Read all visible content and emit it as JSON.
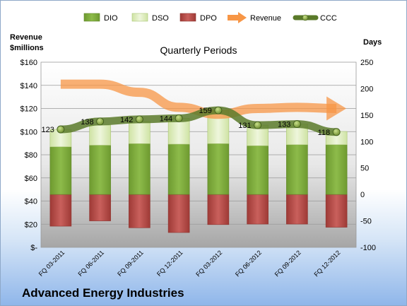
{
  "chart_data": {
    "type": "bar",
    "title": "Quarterly Periods",
    "company": "Advanced Energy Industries",
    "left_axis_label": [
      "Revenue",
      "$millions"
    ],
    "right_axis_label": "Days",
    "categories": [
      "FQ 03-2011",
      "FQ 06-2011",
      "FQ 09-2011",
      "FQ 12-2011",
      "FQ 03-2012",
      "FQ 06-2012",
      "FQ 09-2012",
      "FQ 12-2012"
    ],
    "legend": [
      "DIO",
      "DSO",
      "DPO",
      "Revenue",
      "CCC"
    ],
    "left_ticks": [
      "$160",
      "$140",
      "$120",
      "$100",
      "$80",
      "$60",
      "$40",
      "$20",
      "$-"
    ],
    "right_ticks": [
      "250",
      "200",
      "150",
      "100",
      "50",
      "0",
      "-50",
      "-100"
    ],
    "left_ylim": [
      0,
      160
    ],
    "right_ylim": [
      -100,
      250
    ],
    "series": [
      {
        "name": "DIO",
        "color": "#7fae3e",
        "values": [
          90,
          93,
          96,
          95,
          96,
          92,
          94,
          94
        ]
      },
      {
        "name": "DSO",
        "color": "#d9ebb4",
        "values": [
          33,
          38,
          42,
          49,
          63,
          39,
          39,
          25
        ]
      },
      {
        "name": "DPO",
        "color": "#c0504d",
        "values": [
          -60,
          -50,
          -63,
          -72,
          -57,
          -56,
          -56,
          -62
        ]
      },
      {
        "name": "Revenue",
        "color": "#f79646",
        "values": [
          141,
          141,
          134,
          121,
          115,
          120,
          121,
          120
        ]
      },
      {
        "name": "CCC",
        "color": "#4f6228",
        "values": [
          123,
          138,
          142,
          144,
          159,
          131,
          133,
          118
        ]
      }
    ],
    "ccc_labels": [
      "123",
      "138",
      "142",
      "144",
      "159",
      "131",
      "133",
      "118"
    ],
    "grid": true,
    "legend_position": "top"
  }
}
